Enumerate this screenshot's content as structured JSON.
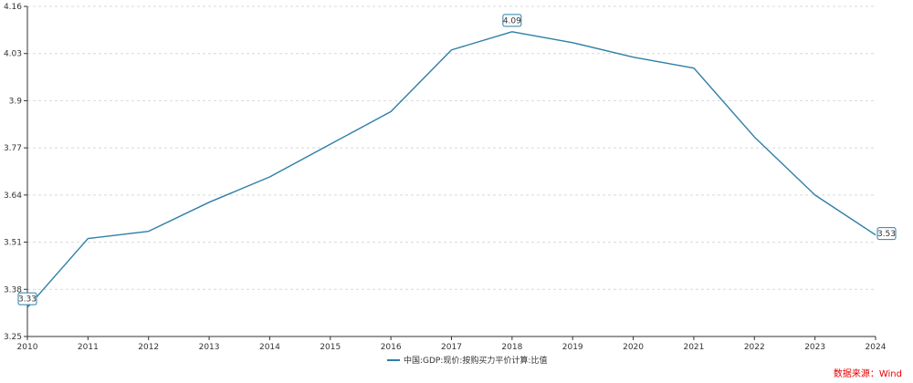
{
  "chart_data": {
    "type": "line",
    "x": [
      "2010",
      "2011",
      "2012",
      "2013",
      "2014",
      "2015",
      "2016",
      "2017",
      "2018",
      "2019",
      "2020",
      "2021",
      "2022",
      "2023",
      "2024"
    ],
    "series": [
      {
        "name": "中国:GDP:现价:按购买力平价计算:比值",
        "values": [
          3.33,
          3.52,
          3.54,
          3.62,
          3.69,
          3.78,
          3.87,
          4.04,
          4.09,
          4.06,
          4.02,
          3.99,
          3.8,
          3.64,
          3.53
        ]
      }
    ],
    "yticks": [
      "3.25",
      "3.38",
      "3.51",
      "3.64",
      "3.77",
      "3.9",
      "4.03",
      "4.16"
    ],
    "ylim": [
      3.25,
      4.16
    ],
    "data_labels": [
      {
        "index": 0,
        "text": "3.33"
      },
      {
        "index": 8,
        "text": "4.09"
      },
      {
        "index": 14,
        "text": "3.53"
      }
    ],
    "grid": true,
    "legend_position": "bottom-center",
    "colors": {
      "line": "#2e7fa6",
      "grid": "#d9d9d9",
      "axis": "#333333",
      "source": "#e60000"
    }
  },
  "source_text": "数据来源：Wind"
}
